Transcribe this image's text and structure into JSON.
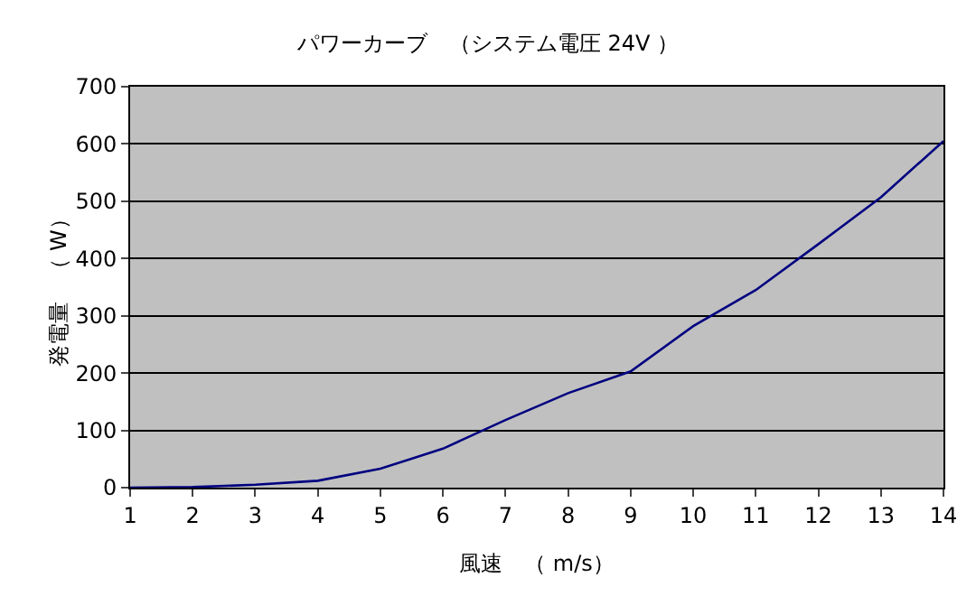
{
  "chart_data": {
    "type": "line",
    "title": "パワーカーブ　（システム電圧 24V ）",
    "xlabel": "風速　（ m/s）",
    "ylabel": "発電量　（ W）",
    "x": [
      1,
      2,
      3,
      4,
      5,
      6,
      7,
      8,
      9,
      10,
      11,
      12,
      13,
      14
    ],
    "series": [
      {
        "color": "#000080",
        "values": [
          0,
          1,
          5,
          12,
          33,
          68,
          118,
          165,
          203,
          282,
          345,
          425,
          507,
          605
        ]
      }
    ],
    "xlim": [
      1,
      14
    ],
    "xticks": [
      1,
      2,
      3,
      4,
      5,
      6,
      7,
      8,
      9,
      10,
      11,
      12,
      13,
      14
    ],
    "ylim": [
      0,
      700
    ],
    "yticks": [
      0,
      100,
      200,
      300,
      400,
      500,
      600,
      700
    ],
    "grid": "y",
    "marker": "none",
    "line_style": "solid"
  }
}
